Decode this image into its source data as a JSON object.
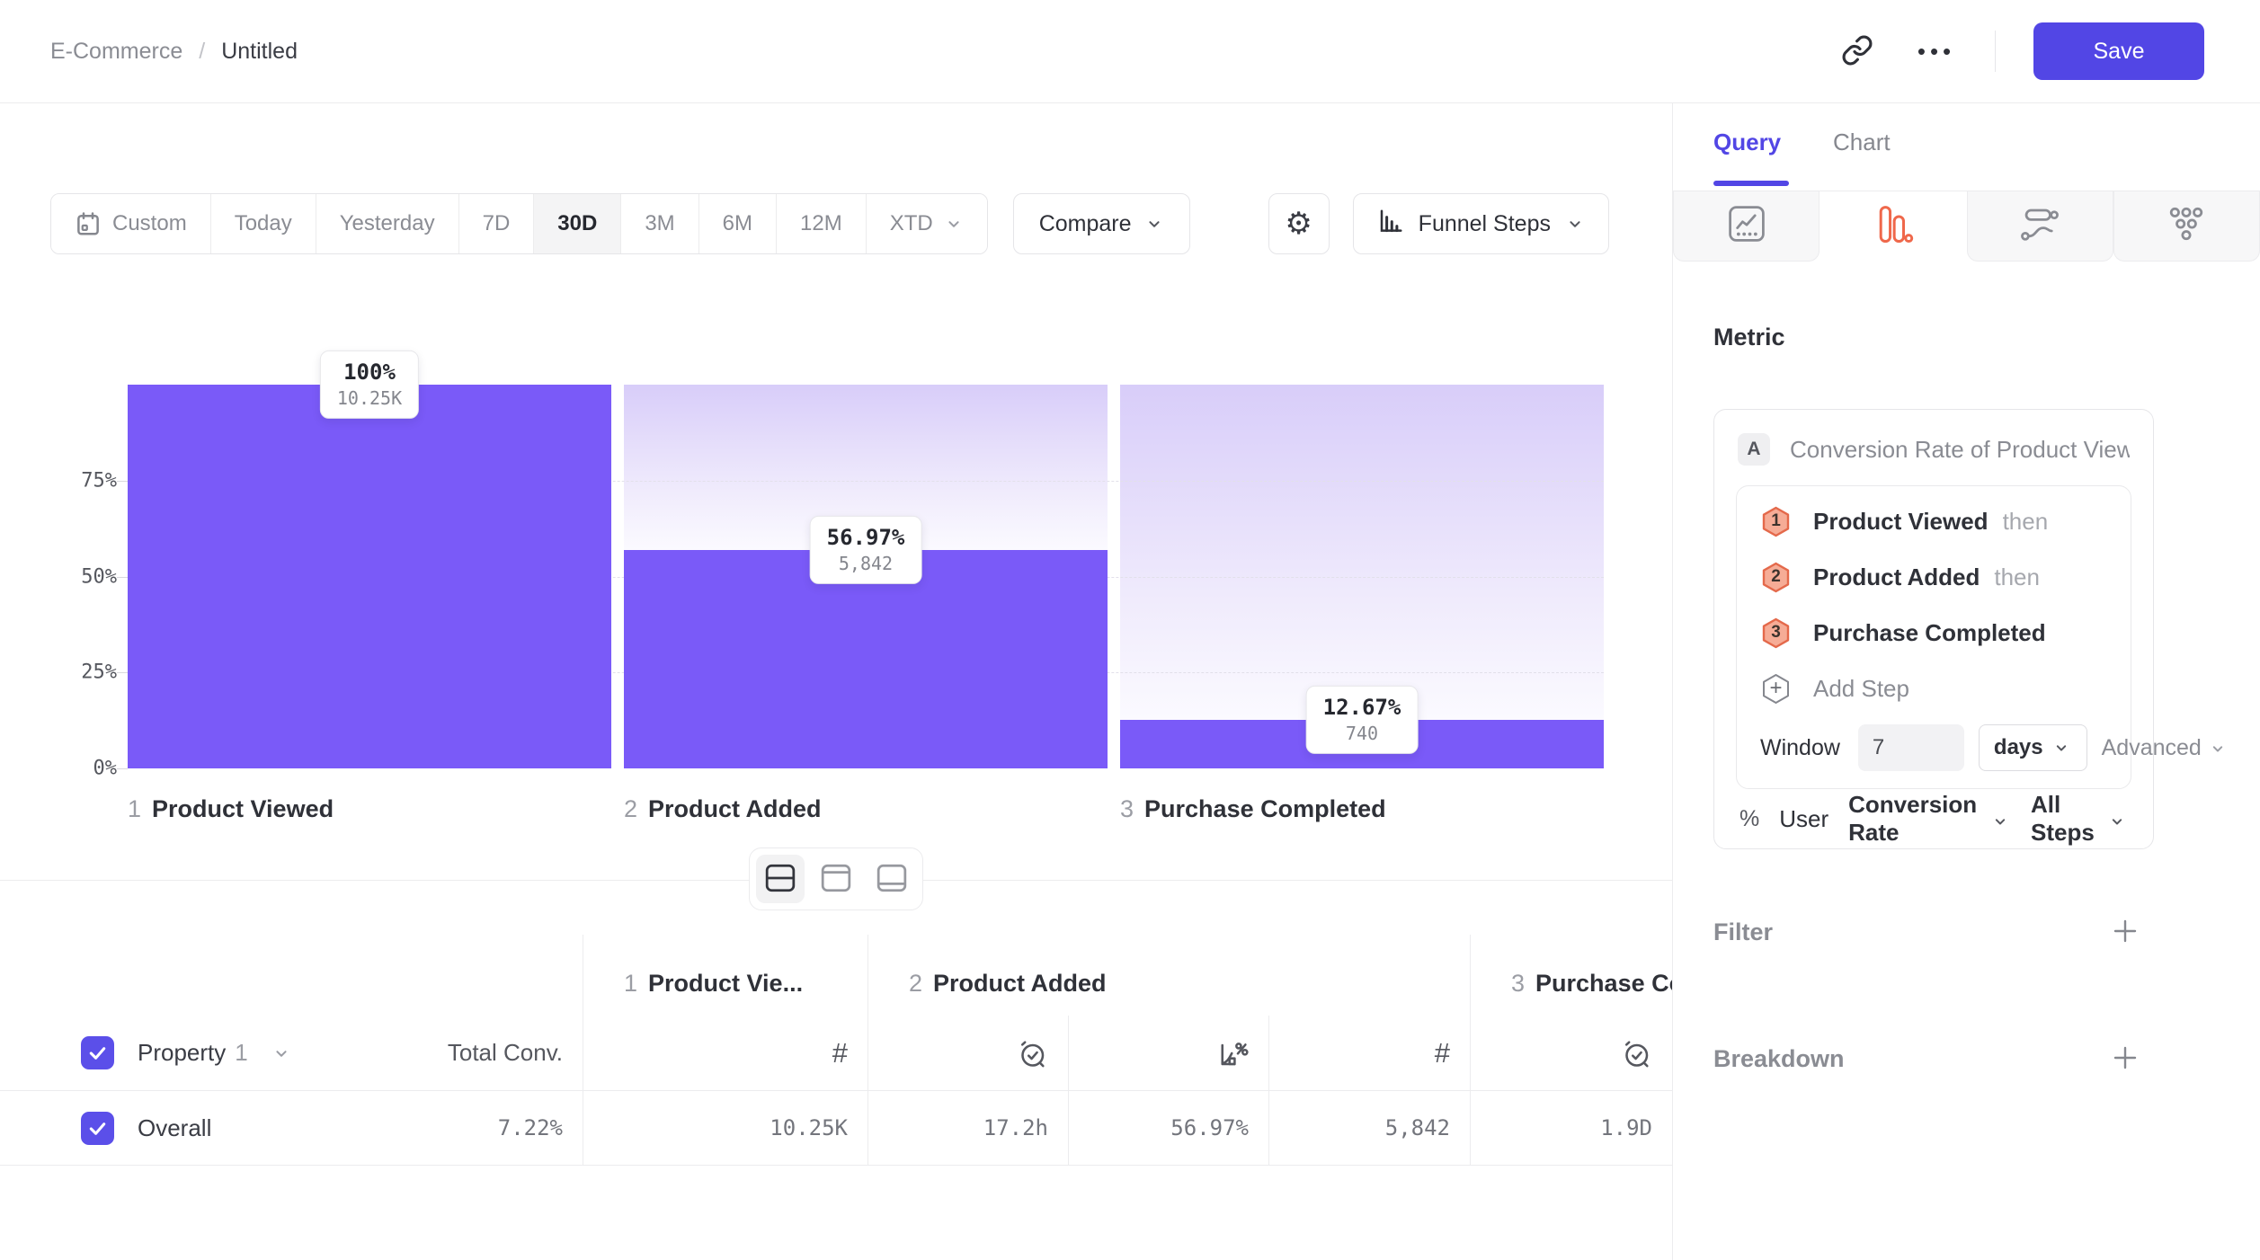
{
  "header": {
    "breadcrumb_parent": "E-Commerce",
    "breadcrumb_separator": "/",
    "title": "Untitled",
    "save_label": "Save"
  },
  "toolbar": {
    "ranges": [
      {
        "label": "Custom"
      },
      {
        "label": "Today"
      },
      {
        "label": "Yesterday"
      },
      {
        "label": "7D"
      },
      {
        "label": "30D"
      },
      {
        "label": "3M"
      },
      {
        "label": "6M"
      },
      {
        "label": "12M"
      },
      {
        "label": "XTD"
      }
    ],
    "active_range": "30D",
    "compare_label": "Compare",
    "chart_type_label": "Funnel Steps"
  },
  "legend": {
    "series": "Overall",
    "separator": "·",
    "value": "7.22%",
    "swatch_color": "#7A5AF8"
  },
  "chart_data": {
    "type": "funnel-bar",
    "series": "Overall",
    "overall_conversion": "7.22%",
    "bar_color": "#7A5AF8",
    "y_ticks": [
      "0%",
      "25%",
      "50%",
      "75%"
    ],
    "ylim": [
      0,
      100
    ],
    "grid": "dashed-horizontal",
    "steps": [
      {
        "index": "1",
        "name": "Product Viewed",
        "pct": 100,
        "pct_label": "100%",
        "count_label": "10.25K",
        "count": 10250
      },
      {
        "index": "2",
        "name": "Product Added",
        "pct": 56.97,
        "pct_label": "56.97%",
        "count_label": "5,842",
        "count": 5842
      },
      {
        "index": "3",
        "name": "Purchase Completed",
        "pct": 12.67,
        "pct_label": "12.67%",
        "count_label": "740",
        "count": 740
      }
    ]
  },
  "table": {
    "property_label": "Property",
    "property_number": "1",
    "total_header": "Total Conv.",
    "groups": [
      {
        "num": "1",
        "title": "Product Vie..."
      },
      {
        "num": "2",
        "title": "Product Added"
      },
      {
        "num": "3",
        "title": "Purchase Completed"
      }
    ],
    "row": {
      "label": "Overall",
      "total": "7.22%",
      "values": [
        "10.25K",
        "17.2h",
        "56.97%",
        "5,842",
        "1.9D"
      ]
    }
  },
  "sidebar": {
    "tabs": [
      {
        "label": "Query"
      },
      {
        "label": "Chart"
      }
    ],
    "active_tab": "Query",
    "metric_heading": "Metric",
    "metric": {
      "series_letter": "A",
      "series_title": "Conversion Rate of Product View...",
      "steps": [
        {
          "num": "1",
          "label": "Product Viewed",
          "conjunction": "then"
        },
        {
          "num": "2",
          "label": "Product Added",
          "conjunction": "then"
        },
        {
          "num": "3",
          "label": "Purchase Completed",
          "conjunction": ""
        }
      ],
      "add_step_label": "Add Step",
      "window_label": "Window",
      "window_value": "7",
      "window_unit": "days",
      "advanced_label": "Advanced",
      "summary": {
        "unit": "%",
        "actor": "User",
        "measure": "Conversion Rate",
        "scope": "All Steps"
      }
    },
    "sections": [
      {
        "label": "Filter"
      },
      {
        "label": "Breakdown"
      }
    ]
  }
}
